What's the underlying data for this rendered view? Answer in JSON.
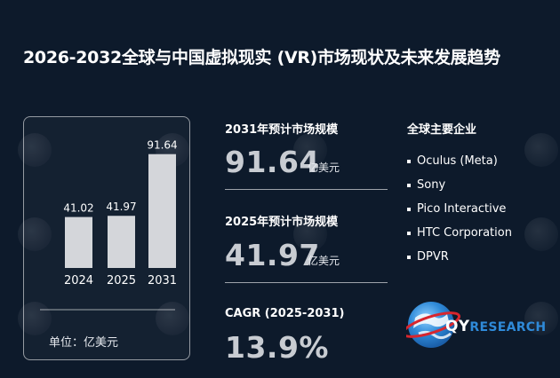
{
  "title": "2026-2032全球与中国虚拟现实 (VR)市场现状及未来发展趋势",
  "chart_data": {
    "type": "bar",
    "categories": [
      "2024",
      "2025",
      "2031"
    ],
    "values": [
      41.02,
      41.97,
      91.64
    ],
    "value_labels": [
      "41.02",
      "41.97",
      "91.64"
    ],
    "ylim": [
      0,
      100
    ],
    "bar_color": "#d4d6da",
    "unit_label": "单位：亿美元"
  },
  "metrics": {
    "m2031": {
      "label": "2031年预计市场规模",
      "value": "91.64",
      "unit": "亿美元"
    },
    "m2025": {
      "label": "2025年预计市场规模",
      "value": "41.97",
      "unit": "亿美元"
    },
    "cagr": {
      "label": "CAGR (2025-2031)",
      "value": "13.9%"
    }
  },
  "companies": {
    "title": "全球主要企业",
    "items": [
      "Oculus (Meta)",
      "Sony",
      "Pico Interactive",
      "HTC Corporation",
      "DPVR"
    ]
  },
  "logo": {
    "q": "QY",
    "rest": "RESEARCH",
    "accent_color": "#2f8ad8"
  },
  "colors": {
    "background": "#0d1a2b",
    "value_gray": "#c8ccd2"
  }
}
